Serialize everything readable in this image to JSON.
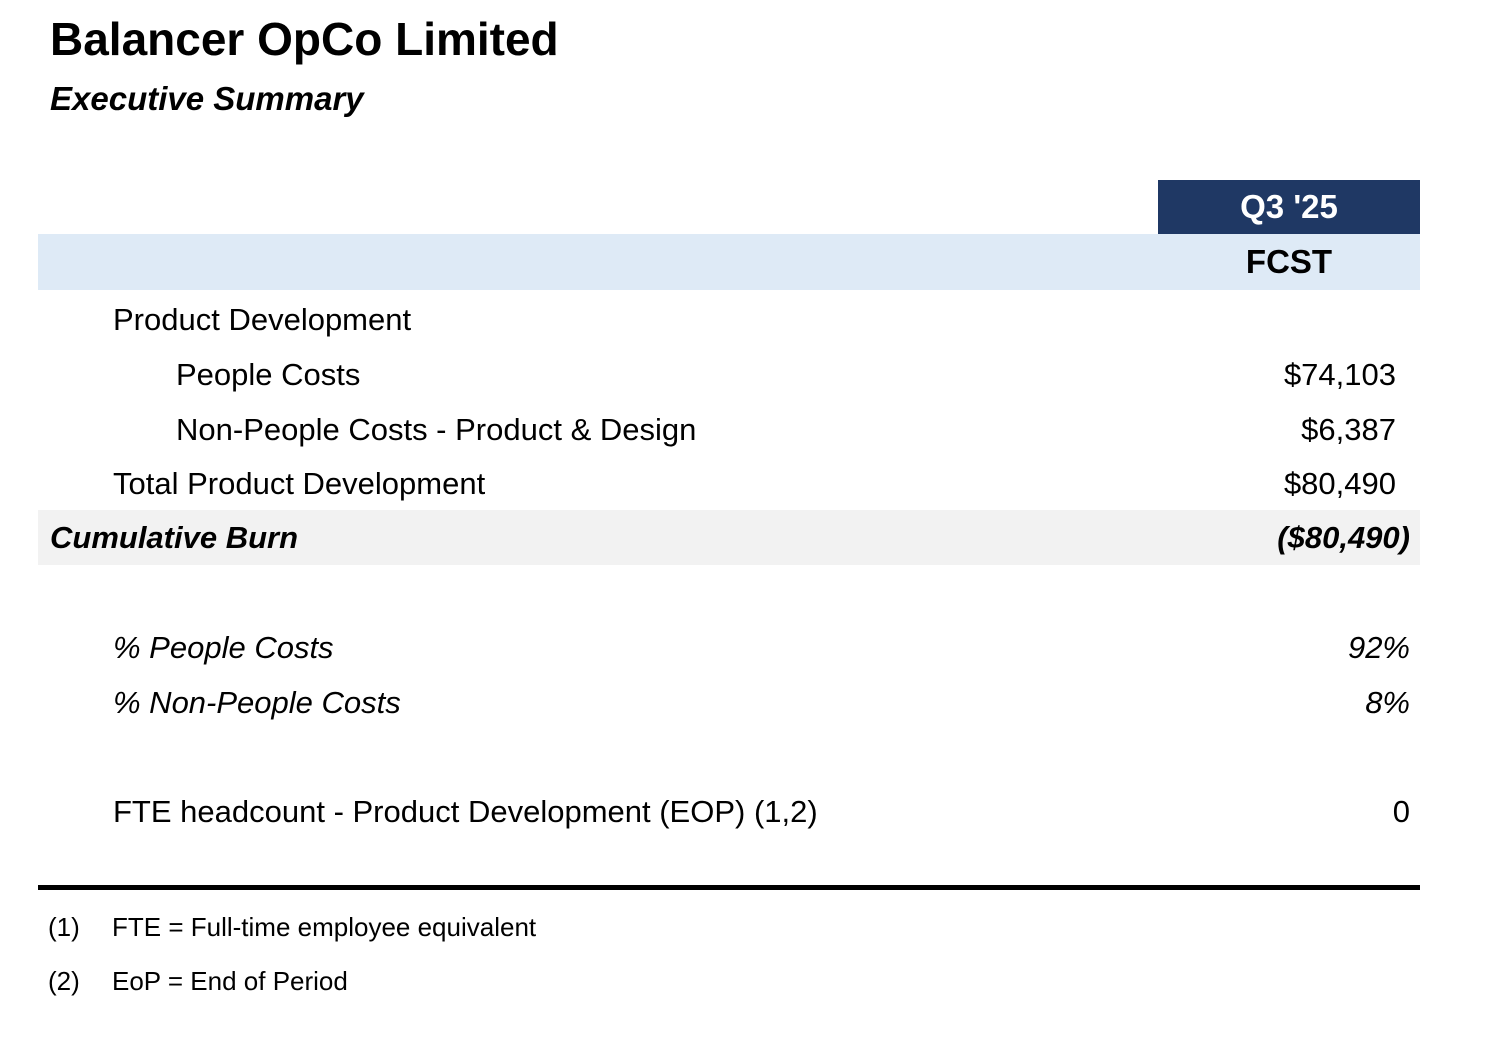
{
  "header": {
    "title": "Balancer OpCo Limited",
    "subtitle": "Executive Summary"
  },
  "table": {
    "column_period": "Q3 '25",
    "column_type": "FCST",
    "rows": [
      {
        "label": "Product Development"
      },
      {
        "label": "People Costs",
        "value": "$74,103"
      },
      {
        "label": "Non-People Costs - Product & Design",
        "value": "$6,387"
      },
      {
        "label": "Total Product Development",
        "value": "$80,490"
      },
      {
        "label": "Cumulative Burn",
        "value": "($80,490)"
      },
      {
        "label": "% People Costs",
        "value": "92%"
      },
      {
        "label": "% Non-People Costs",
        "value": "8%"
      },
      {
        "label": "FTE headcount - Product Development (EOP) (1,2)",
        "value": "0"
      }
    ]
  },
  "footnotes": [
    {
      "marker": "(1)",
      "text": "FTE = Full-time employee equivalent"
    },
    {
      "marker": "(2)",
      "text": "EoP = End of Period"
    }
  ]
}
